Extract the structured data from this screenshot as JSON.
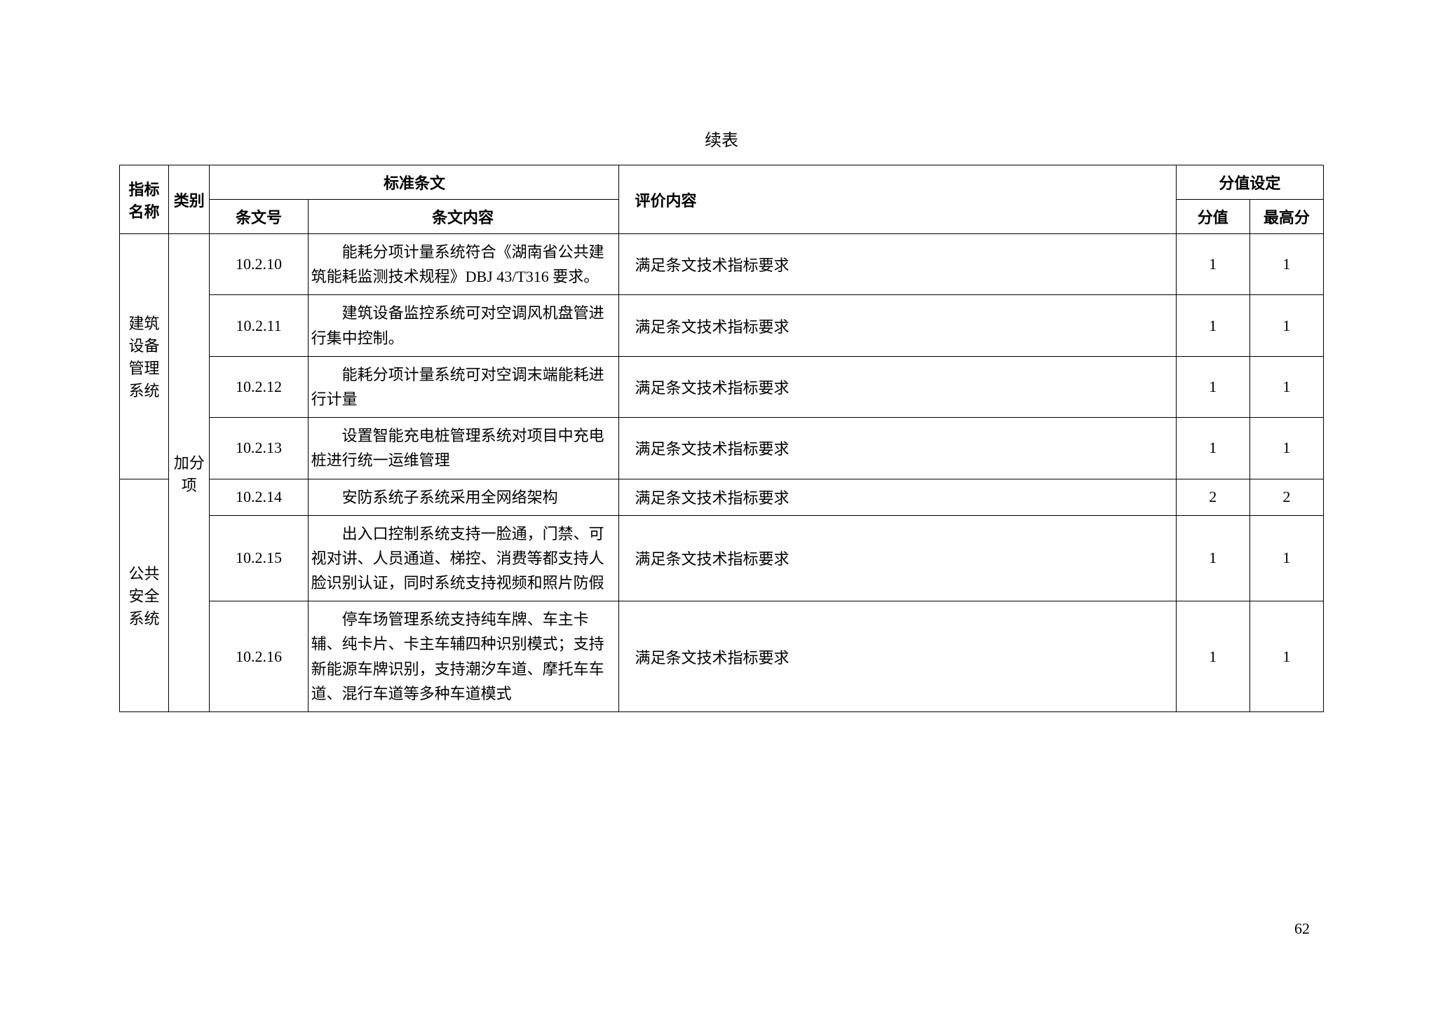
{
  "caption": "续表",
  "pageNumber": "62",
  "headers": {
    "indicatorName": "指标名称",
    "category": "类别",
    "standardClause": "标准条文",
    "clauseNo": "条文号",
    "clauseContent": "条文内容",
    "evalContent": "评价内容",
    "scoreSetting": "分值设定",
    "score": "分值",
    "maxScore": "最高分"
  },
  "groups": [
    {
      "name": "建筑设备管理系统",
      "rows": [
        {
          "clauseNo": "10.2.10",
          "clauseContent": "　　能耗分项计量系统符合《湖南省公共建筑能耗监测技术规程》DBJ 43/T316 要求。",
          "eval": "满足条文技术指标要求",
          "score": "1",
          "maxScore": "1"
        },
        {
          "clauseNo": "10.2.11",
          "clauseContent": "　　建筑设备监控系统可对空调风机盘管进行集中控制。",
          "eval": "满足条文技术指标要求",
          "score": "1",
          "maxScore": "1"
        },
        {
          "clauseNo": "10.2.12",
          "clauseContent": "　　能耗分项计量系统可对空调末端能耗进行计量",
          "eval": "满足条文技术指标要求",
          "score": "1",
          "maxScore": "1"
        },
        {
          "clauseNo": "10.2.13",
          "clauseContent": "　　设置智能充电桩管理系统对项目中充电桩进行统一运维管理",
          "eval": "满足条文技术指标要求",
          "score": "1",
          "maxScore": "1"
        }
      ]
    },
    {
      "name": "公共安全系统",
      "rows": [
        {
          "clauseNo": "10.2.14",
          "clauseContent": "　　安防系统子系统采用全网络架构",
          "eval": "满足条文技术指标要求",
          "score": "2",
          "maxScore": "2"
        },
        {
          "clauseNo": "10.2.15",
          "clauseContent": "　　出入口控制系统支持一脸通，门禁、可视对讲、人员通道、梯控、消费等都支持人脸识别认证，同时系统支持视频和照片防假",
          "eval": "满足条文技术指标要求",
          "score": "1",
          "maxScore": "1"
        },
        {
          "clauseNo": "10.2.16",
          "clauseContent": "　　停车场管理系统支持纯车牌、车主卡辅、纯卡片、卡主车辅四种识别模式；支持新能源车牌识别，支持潮汐车道、摩托车车道、混行车道等多种车道模式",
          "eval": "满足条文技术指标要求",
          "score": "1",
          "maxScore": "1"
        }
      ]
    }
  ],
  "categoryLabel": "加分项"
}
